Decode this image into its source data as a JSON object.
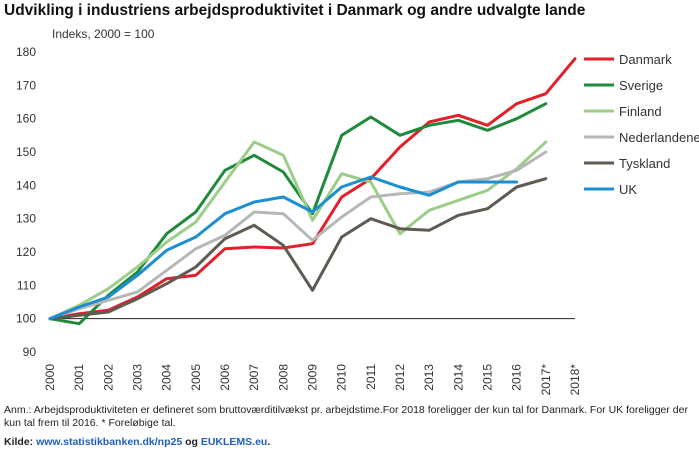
{
  "title": "Udvikling i industriens arbejdsproduktivitet i Danmark og andre udvalgte lande",
  "note": "Anm.: Arbejdsproduktiviteten er defineret som bruttoværditilvækst pr. arbejdstime.For 2018 foreligger der kun tal for Danmark. For UK foreligger der kun tal frem til 2016. * Foreløbige tal.",
  "source": {
    "label": "Kilde:",
    "link1": "www.statistikbanken.dk/np25",
    "and": "og",
    "link2": "EUKLEMS.eu",
    "end": "."
  },
  "chart_data": {
    "type": "line",
    "ylabel": "Indeks, 2000 = 100",
    "ylim": [
      90,
      180
    ],
    "yticks": [
      90,
      100,
      110,
      120,
      130,
      140,
      150,
      160,
      170,
      180
    ],
    "categories": [
      "2000",
      "2001",
      "2002",
      "2003",
      "2004",
      "2005",
      "2006",
      "2007",
      "2008",
      "2009",
      "2010",
      "2011",
      "2012",
      "2013",
      "2014",
      "2015",
      "2016",
      "2017*",
      "2018*"
    ],
    "legend_position": "right",
    "grid": false,
    "reference_line": 100,
    "series": [
      {
        "name": "Danmark",
        "color": "#e3202a",
        "values": [
          100,
          101.5,
          102.5,
          106.5,
          112,
          113,
          121,
          121.5,
          121.2,
          122.5,
          136.5,
          142,
          151.5,
          159,
          161,
          158,
          164.5,
          167.5,
          178
        ]
      },
      {
        "name": "Sverige",
        "color": "#1e8a3c",
        "values": [
          100,
          98.5,
          107,
          114,
          125.5,
          132,
          144.5,
          149,
          144,
          131.5,
          155,
          160.5,
          155,
          158,
          159.5,
          156.5,
          160,
          164.5,
          null
        ]
      },
      {
        "name": "Finland",
        "color": "#9cce8a",
        "values": [
          100,
          104,
          109,
          115.5,
          123,
          129,
          141,
          153,
          149,
          129.5,
          143.5,
          141,
          125.5,
          132.5,
          135.5,
          138.5,
          145,
          153,
          null
        ]
      },
      {
        "name": "Nederlandene",
        "color": "#b7b7b7",
        "values": [
          100,
          103,
          105.5,
          108,
          114.5,
          121,
          125,
          132,
          131.5,
          123.5,
          130.5,
          136.5,
          137.5,
          138,
          141,
          142,
          144.5,
          150,
          null
        ]
      },
      {
        "name": "Tyskland",
        "color": "#5f5a52",
        "values": [
          100,
          101,
          102,
          106,
          110.5,
          115.5,
          124,
          128,
          122,
          108.5,
          124.5,
          130,
          127,
          126.5,
          131,
          133,
          139.5,
          142,
          null
        ]
      },
      {
        "name": "UK",
        "color": "#1d8fd1",
        "values": [
          100,
          103.5,
          106.5,
          113,
          120.5,
          124.5,
          131.5,
          135,
          136.5,
          132,
          139.5,
          142.5,
          139.5,
          137,
          141,
          141,
          141,
          null,
          null
        ]
      }
    ]
  }
}
